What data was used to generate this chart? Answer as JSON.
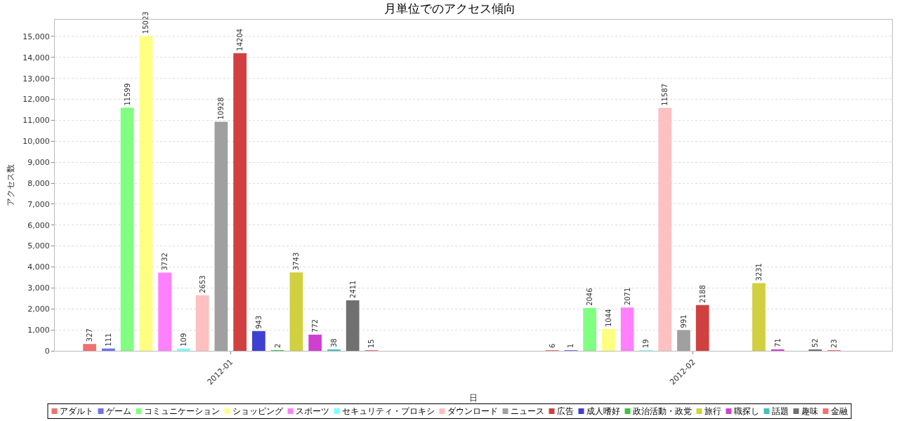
{
  "chart_data": {
    "type": "bar",
    "title": "月単位でのアクセス傾向",
    "xlabel": "日",
    "ylabel": "アクセス数",
    "categories": [
      "2012-01",
      "2012-02"
    ],
    "series": [
      {
        "name": "アダルト",
        "color": "#f07070",
        "values": [
          327,
          6
        ],
        "value_labels": [
          "327",
          "6"
        ]
      },
      {
        "name": "ゲーム",
        "color": "#7070f0",
        "values": [
          111,
          1
        ],
        "value_labels": [
          "111",
          "1"
        ]
      },
      {
        "name": "コミュニケーション",
        "color": "#80ff80",
        "values": [
          11599,
          2046
        ],
        "value_labels": [
          "11599",
          "2046"
        ]
      },
      {
        "name": "ショッピング",
        "color": "#ffff80",
        "values": [
          15023,
          1044
        ],
        "value_labels": [
          "15023",
          "1044"
        ]
      },
      {
        "name": "スポーツ",
        "color": "#ff80ff",
        "values": [
          3732,
          2071
        ],
        "value_labels": [
          "3732",
          "2071"
        ]
      },
      {
        "name": "セキュリティ・プロキシ",
        "color": "#80ffff",
        "values": [
          109,
          19
        ],
        "value_labels": [
          "109",
          "19"
        ]
      },
      {
        "name": "ダウンロード",
        "color": "#ffc0c0",
        "values": [
          2653,
          11587
        ],
        "value_labels": [
          "2653",
          "11587"
        ]
      },
      {
        "name": "ニュース",
        "color": "#a0a0a0",
        "values": [
          10928,
          991
        ],
        "value_labels": [
          "10928",
          "991"
        ]
      },
      {
        "name": "広告",
        "color": "#d04040",
        "values": [
          14204,
          2188
        ],
        "value_labels": [
          "14204",
          "2188"
        ]
      },
      {
        "name": "成人嗜好",
        "color": "#4040d0",
        "values": [
          943,
          0
        ],
        "value_labels": [
          "943",
          null
        ]
      },
      {
        "name": "政治活動・政党",
        "color": "#40c040",
        "values": [
          2,
          0
        ],
        "value_labels": [
          "2",
          null
        ]
      },
      {
        "name": "旅行",
        "color": "#d0d040",
        "values": [
          3743,
          3231
        ],
        "value_labels": [
          "3743",
          "3231"
        ]
      },
      {
        "name": "職探し",
        "color": "#d040d0",
        "values": [
          772,
          71
        ],
        "value_labels": [
          "772",
          "71"
        ]
      },
      {
        "name": "話題",
        "color": "#40c0c0",
        "values": [
          38,
          0
        ],
        "value_labels": [
          "38",
          null
        ]
      },
      {
        "name": "趣味",
        "color": "#707070",
        "values": [
          2411,
          52
        ],
        "value_labels": [
          "2411",
          "52"
        ]
      },
      {
        "name": "金融",
        "color": "#f07070",
        "values": [
          15,
          23
        ],
        "value_labels": [
          "15",
          "23"
        ]
      }
    ],
    "ylim": [
      0,
      15800
    ],
    "yticks": [
      {
        "value": 0,
        "label": "0"
      },
      {
        "value": 1000,
        "label": "1,000"
      },
      {
        "value": 2000,
        "label": "2,000"
      },
      {
        "value": 3000,
        "label": "3,000"
      },
      {
        "value": 4000,
        "label": "4,000"
      },
      {
        "value": 5000,
        "label": "5,000"
      },
      {
        "value": 6000,
        "label": "6,000"
      },
      {
        "value": 7000,
        "label": "7,000"
      },
      {
        "value": 8000,
        "label": "8,000"
      },
      {
        "value": 9000,
        "label": "9,000"
      },
      {
        "value": 10000,
        "label": "10,000"
      },
      {
        "value": 11000,
        "label": "11,000"
      },
      {
        "value": 12000,
        "label": "12,000"
      },
      {
        "value": 13000,
        "label": "13,000"
      },
      {
        "value": 14000,
        "label": "14,000"
      },
      {
        "value": 15000,
        "label": "15,000"
      }
    ],
    "grid": "y",
    "legend": "bottom"
  }
}
